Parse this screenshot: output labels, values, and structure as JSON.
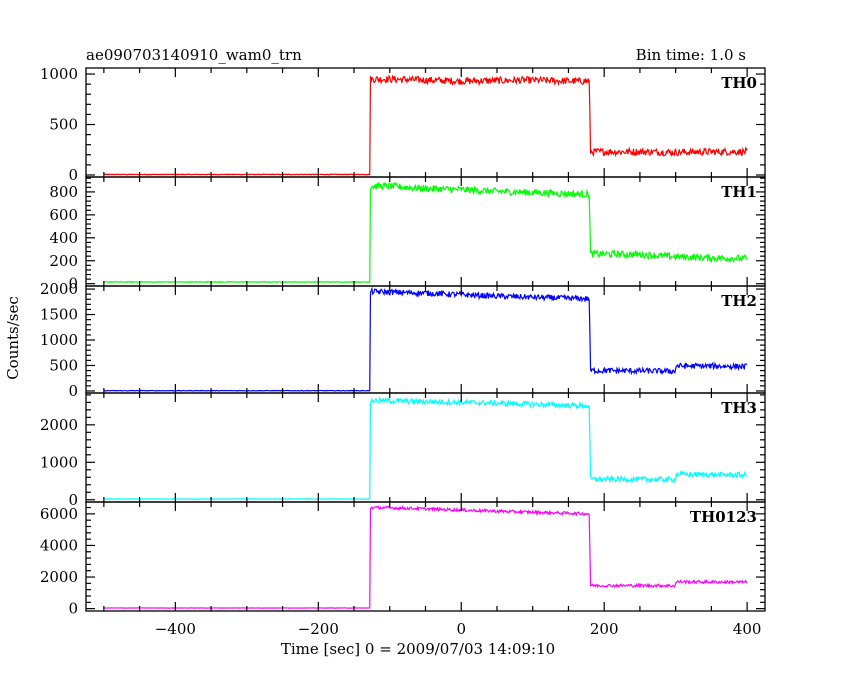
{
  "header": {
    "title": "ae090703140910_wam0_trn",
    "bin_time": "Bin time: 1.0 s"
  },
  "axes": {
    "ylabel": "Counts/sec",
    "xlabel": "Time [sec] 0 = 2009/07/03 14:09:10",
    "x_ticks": [
      "−400",
      "−200",
      "0",
      "200",
      "400"
    ]
  },
  "chart_data": {
    "type": "line",
    "title": "ae090703140910_wam0_trn",
    "xlabel": "Time [sec] 0 = 2009/07/03 14:09:10",
    "ylabel": "Counts/sec",
    "xlim": [
      -525,
      425
    ],
    "x_tick_values": [
      -400,
      -200,
      0,
      200,
      400
    ],
    "grid": false,
    "panels": [
      {
        "name": "TH0",
        "color": "#ff0000",
        "ylim": [
          -20,
          1060
        ],
        "y_ticks": [
          0,
          500,
          1000
        ],
        "y_tick_labels": [
          "0",
          "500",
          "1000"
        ],
        "series": [
          {
            "x": [
              -500,
              -128,
              -127,
              -100,
              -50,
              0,
              50,
              100,
              150,
              179,
              181,
              250,
              300,
              350,
              400
            ],
            "y": [
              5,
              5,
              950,
              950,
              940,
              930,
              935,
              940,
              930,
              930,
              230,
              230,
              225,
              230,
              230
            ],
            "noise": 35
          }
        ]
      },
      {
        "name": "TH1",
        "color": "#00ff00",
        "ylim": [
          -20,
          930
        ],
        "y_ticks": [
          0,
          200,
          400,
          600,
          800
        ],
        "y_tick_labels": [
          "0",
          "200",
          "400",
          "600",
          "800"
        ],
        "series": [
          {
            "x": [
              -500,
              -128,
              -127,
              -100,
              -50,
              0,
              50,
              100,
              150,
              179,
              181,
              250,
              300,
              350,
              400
            ],
            "y": [
              15,
              15,
              850,
              850,
              830,
              820,
              805,
              795,
              785,
              780,
              260,
              255,
              235,
              225,
              220
            ],
            "noise": 30
          }
        ]
      },
      {
        "name": "TH2",
        "color": "#0000ff",
        "ylim": [
          -40,
          2060
        ],
        "y_ticks": [
          0,
          500,
          1000,
          1500,
          2000
        ],
        "y_tick_labels": [
          "0",
          "500",
          "1000",
          "1500",
          "2000"
        ],
        "series": [
          {
            "x": [
              -500,
              -128,
              -127,
              -100,
              -50,
              0,
              50,
              100,
              150,
              179,
              181,
              250,
              299,
              301,
              350,
              400
            ],
            "y": [
              5,
              5,
              1950,
              1940,
              1920,
              1890,
              1860,
              1840,
              1820,
              1810,
              400,
              395,
              385,
              490,
              490,
              480
            ],
            "noise": 55
          }
        ]
      },
      {
        "name": "TH3",
        "color": "#00ffff",
        "ylim": [
          -60,
          2850
        ],
        "y_ticks": [
          0,
          1000,
          2000
        ],
        "y_tick_labels": [
          "0",
          "1000",
          "2000"
        ],
        "series": [
          {
            "x": [
              -500,
              -128,
              -127,
              -100,
              -50,
              0,
              50,
              100,
              150,
              179,
              181,
              250,
              299,
              301,
              350,
              400
            ],
            "y": [
              20,
              20,
              2650,
              2640,
              2620,
              2600,
              2580,
              2550,
              2520,
              2510,
              550,
              545,
              540,
              680,
              670,
              660
            ],
            "noise": 70
          }
        ]
      },
      {
        "name": "TH0123",
        "color": "#ff00ff",
        "ylim": [
          -150,
          6750
        ],
        "y_ticks": [
          0,
          2000,
          4000,
          6000
        ],
        "y_tick_labels": [
          "0",
          "2000",
          "4000",
          "6000"
        ],
        "series": [
          {
            "x": [
              -500,
              -128,
              -127,
              -100,
              -50,
              0,
              50,
              100,
              150,
              179,
              181,
              250,
              299,
              301,
              350,
              400
            ],
            "y": [
              40,
              40,
              6400,
              6380,
              6320,
              6240,
              6170,
              6100,
              6040,
              6000,
              1460,
              1460,
              1450,
              1700,
              1690,
              1680
            ],
            "noise": 90
          }
        ]
      }
    ]
  }
}
